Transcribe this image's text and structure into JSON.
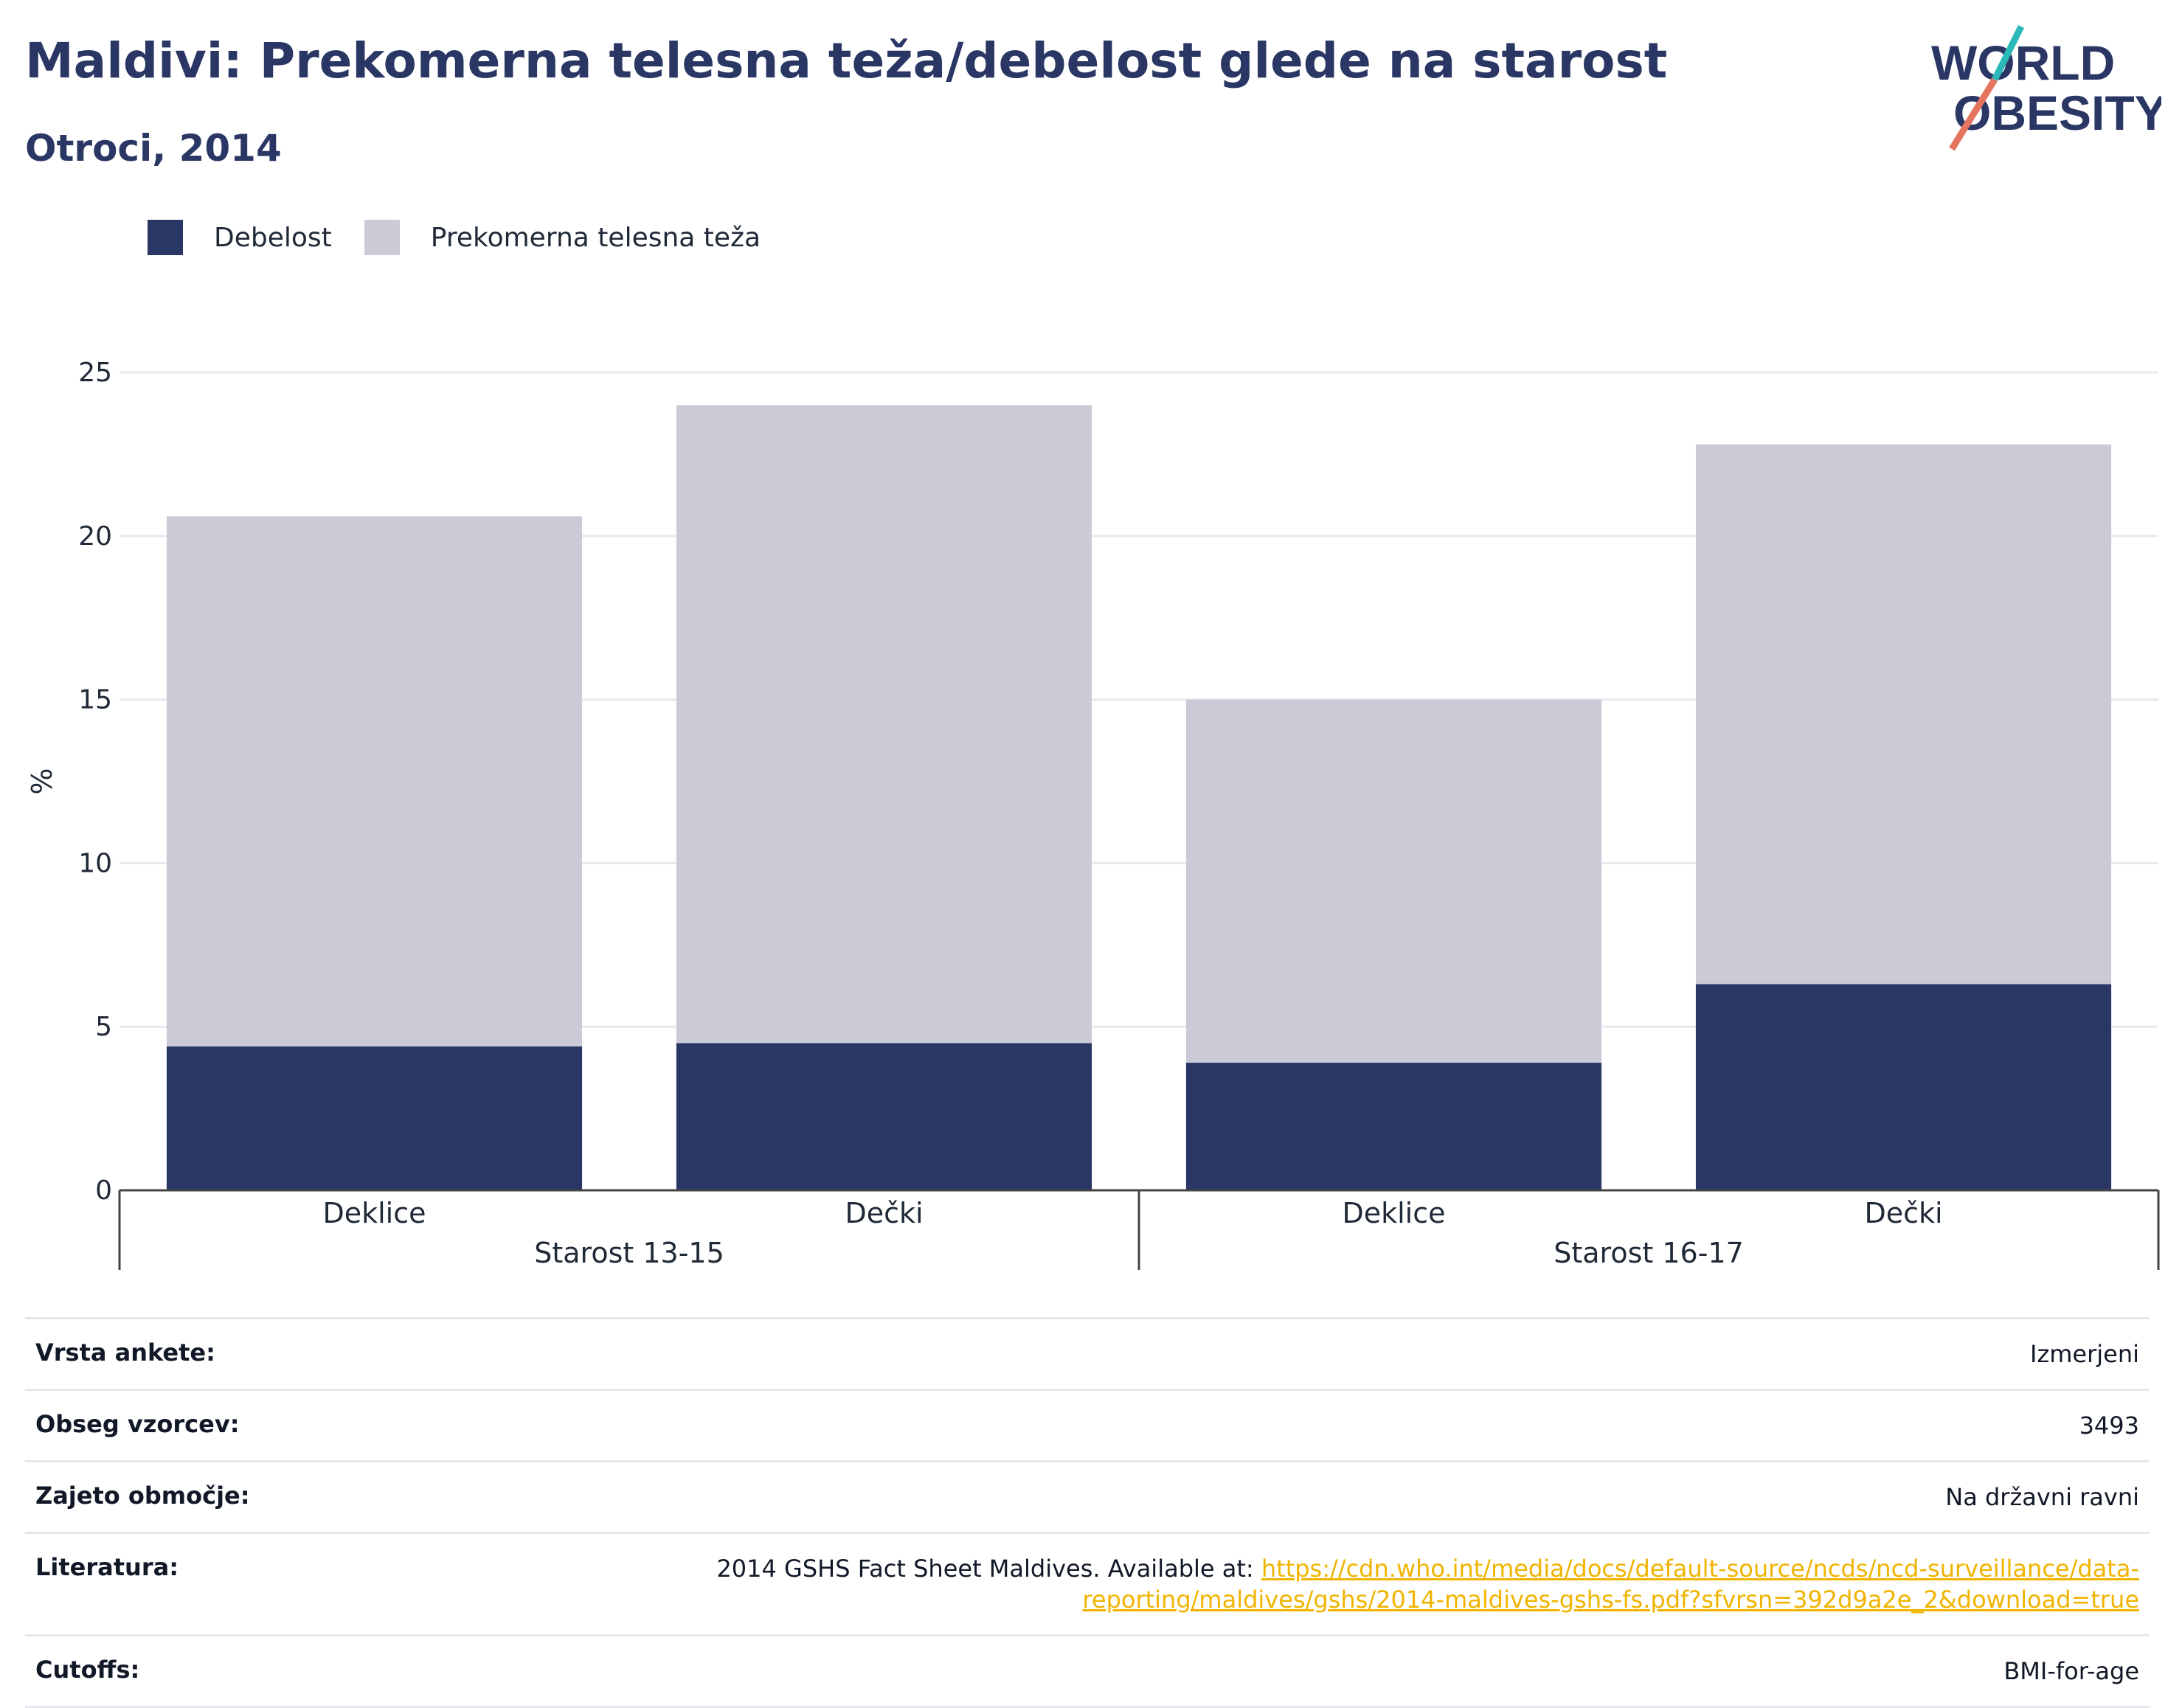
{
  "header": {
    "title": "Maldivi: Prekomerna telesna teža/debelost glede na starost",
    "subtitle": "Otroci, 2014"
  },
  "logo": {
    "line1": "WORLD",
    "line2": "OBESITY"
  },
  "legend": [
    {
      "label": "Debelost",
      "color": "#2a3664"
    },
    {
      "label": "Prekomerna telesna teža",
      "color": "#cacbd7"
    }
  ],
  "chart_data": {
    "type": "bar",
    "stacked": true,
    "ylabel": "%",
    "ylim": [
      0,
      25
    ],
    "yticks": [
      0,
      5,
      10,
      15,
      20,
      25
    ],
    "grid": true,
    "legend_position": "top-left",
    "categories": [
      "Deklice",
      "Dečki",
      "Deklice",
      "Dečki"
    ],
    "groups": [
      {
        "label": "Starost 13-15",
        "categories": [
          "Deklice",
          "Dečki"
        ]
      },
      {
        "label": "Starost 16-17",
        "categories": [
          "Deklice",
          "Dečki"
        ]
      }
    ],
    "series": [
      {
        "name": "Debelost",
        "color": "#2a3664",
        "values": [
          4.4,
          4.5,
          3.9,
          6.3
        ]
      },
      {
        "name": "Prekomerna telesna teža",
        "color": "#cacbd7",
        "values": [
          16.2,
          19.5,
          11.1,
          16.5
        ]
      }
    ]
  },
  "meta": {
    "survey_type": {
      "label": "Vrsta ankete:",
      "value": "Izmerjeni"
    },
    "sample_size": {
      "label": "Obseg vzorcev:",
      "value": "3493"
    },
    "coverage": {
      "label": "Zajeto območje:",
      "value": "Na državni ravni"
    },
    "literature": {
      "label": "Literatura:",
      "value": "2014 GSHS Fact Sheet Maldives. Available at: ",
      "link": "https://cdn.who.int/media/docs/default-source/ncds/ncd-surveillance/data-reporting/maldives/gshs/2014-maldives-gshs-fs.pdf?sfvrsn=392d9a2e_2&download=true"
    },
    "cutoffs": {
      "label": "Cutoffs:",
      "value": "BMI-for-age"
    }
  }
}
